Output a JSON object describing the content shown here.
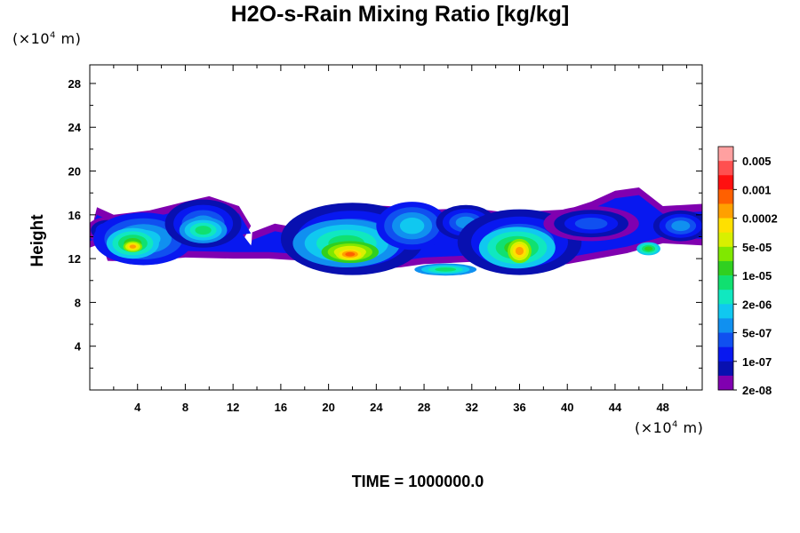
{
  "page": {
    "title": "H2O-s-Rain Mixing Ratio [kg/kg]",
    "y_unit_prefix": "(×10",
    "y_unit_exp": "4",
    "y_unit_suffix": " m)",
    "x_unit_prefix": "(×10",
    "x_unit_exp": "4",
    "x_unit_suffix": " m)",
    "ylabel": "Height",
    "footer": "TIME = 1000000.0"
  },
  "chart_data": {
    "type": "heatmap",
    "title": "H2O-s-Rain Mixing Ratio [kg/kg]",
    "xlabel": "",
    "ylabel": "Height",
    "x_unit": "×10^4 m",
    "y_unit": "×10^4 m",
    "xlim": [
      0,
      51.3
    ],
    "ylim": [
      0,
      29.7
    ],
    "xticks": [
      4,
      8,
      12,
      16,
      20,
      24,
      28,
      32,
      36,
      40,
      44,
      48
    ],
    "yticks": [
      4,
      8,
      12,
      16,
      20,
      24,
      28
    ],
    "colorbar": {
      "labels": [
        "0.005",
        "0.001",
        "0.0002",
        "5e-05",
        "1e-05",
        "2e-06",
        "5e-07",
        "1e-07",
        "2e-08"
      ],
      "colors_top_to_bottom": [
        "#ffa0a0",
        "#ff5050",
        "#ff1010",
        "#ff6000",
        "#ffa000",
        "#ffe000",
        "#d8f000",
        "#80e800",
        "#30d020",
        "#10e070",
        "#10e8c0",
        "#10c8f0",
        "#1090f0",
        "#1050f0",
        "#0818f0",
        "#0810b0",
        "#8000b0"
      ]
    },
    "cloud_blobs": [
      {
        "x": 1.5,
        "y": 14.6,
        "rx": 1.8,
        "ry": 1.2,
        "level": 0
      },
      {
        "x": 4.5,
        "y": 13.8,
        "rx": 4.2,
        "ry": 2.4,
        "level": 2
      },
      {
        "x": 3.6,
        "y": 13.4,
        "rx": 2.2,
        "ry": 1.4,
        "level": 5
      },
      {
        "x": 3.6,
        "y": 13.1,
        "rx": 0.8,
        "ry": 0.5,
        "level": 9
      },
      {
        "x": 9.5,
        "y": 15.2,
        "rx": 3.2,
        "ry": 2.2,
        "level": 1
      },
      {
        "x": 9.5,
        "y": 14.6,
        "rx": 2.0,
        "ry": 1.2,
        "level": 4
      },
      {
        "x": 22.0,
        "y": 13.8,
        "rx": 6.0,
        "ry": 3.3,
        "level": 1
      },
      {
        "x": 21.5,
        "y": 13.4,
        "rx": 4.5,
        "ry": 2.2,
        "level": 4
      },
      {
        "x": 21.8,
        "y": 12.6,
        "rx": 2.4,
        "ry": 1.0,
        "level": 8
      },
      {
        "x": 21.8,
        "y": 12.4,
        "rx": 1.2,
        "ry": 0.55,
        "level": 10
      },
      {
        "x": 27.0,
        "y": 15.0,
        "rx": 3.0,
        "ry": 2.2,
        "level": 2
      },
      {
        "x": 29.8,
        "y": 11.0,
        "rx": 2.6,
        "ry": 0.55,
        "level": 4
      },
      {
        "x": 31.5,
        "y": 15.3,
        "rx": 2.5,
        "ry": 1.6,
        "level": 1
      },
      {
        "x": 36.0,
        "y": 13.5,
        "rx": 5.2,
        "ry": 3.0,
        "level": 1
      },
      {
        "x": 35.8,
        "y": 13.0,
        "rx": 3.2,
        "ry": 1.9,
        "level": 5
      },
      {
        "x": 36.0,
        "y": 12.7,
        "rx": 1.0,
        "ry": 1.1,
        "level": 9
      },
      {
        "x": 42.0,
        "y": 15.2,
        "rx": 4.0,
        "ry": 1.6,
        "level": 0
      },
      {
        "x": 46.8,
        "y": 12.9,
        "rx": 1.0,
        "ry": 0.6,
        "level": 5
      },
      {
        "x": 49.5,
        "y": 15.0,
        "rx": 2.3,
        "ry": 1.4,
        "level": 1
      }
    ],
    "envelope_level": 0,
    "grid": false,
    "legend": "right colorbar"
  }
}
